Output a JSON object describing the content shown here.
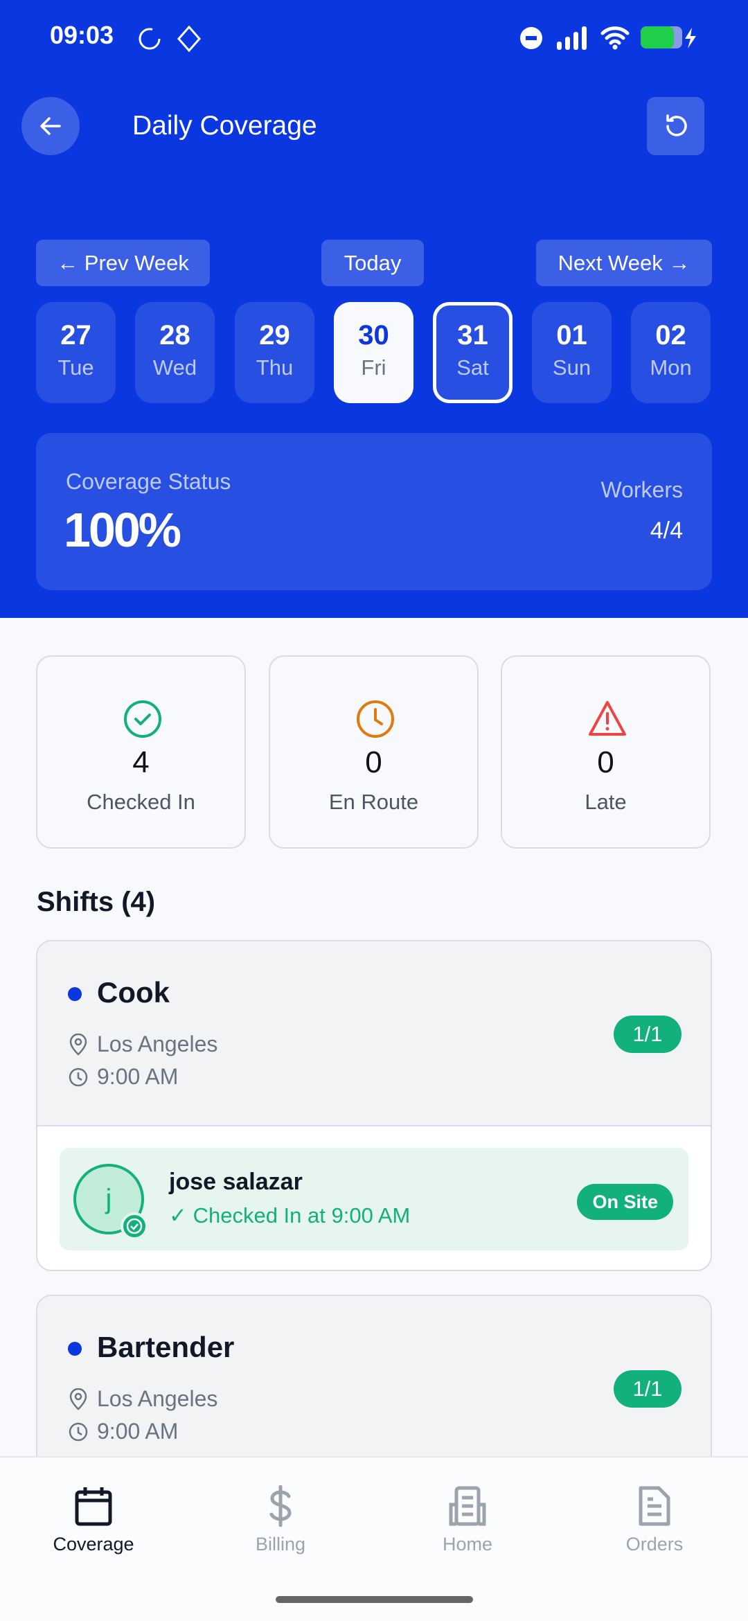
{
  "status_bar": {
    "time": "09:03"
  },
  "header": {
    "title": "Daily Coverage",
    "prev_week": "← Prev Week",
    "today": "Today",
    "next_week": "Next Week →"
  },
  "days": [
    {
      "num": "27",
      "dow": "Tue"
    },
    {
      "num": "28",
      "dow": "Wed"
    },
    {
      "num": "29",
      "dow": "Thu"
    },
    {
      "num": "30",
      "dow": "Fri",
      "selected": true
    },
    {
      "num": "31",
      "dow": "Sat",
      "outlined": true
    },
    {
      "num": "01",
      "dow": "Sun"
    },
    {
      "num": "02",
      "dow": "Mon"
    }
  ],
  "coverage": {
    "label": "Coverage Status",
    "value": "100%",
    "workers_label": "Workers",
    "workers_value": "4/4"
  },
  "stats": [
    {
      "value": "4",
      "label": "Checked In",
      "icon": "check-circle-icon",
      "color": "#12b07a"
    },
    {
      "value": "0",
      "label": "En Route",
      "icon": "clock-icon",
      "color": "#e07a0c"
    },
    {
      "value": "0",
      "label": "Late",
      "icon": "warning-icon",
      "color": "#ef4444"
    }
  ],
  "shifts_title": "Shifts (4)",
  "shifts": [
    {
      "role": "Cook",
      "location": "Los Angeles",
      "time": "9:00 AM",
      "filled": "1/1",
      "workers": [
        {
          "initial": "j",
          "name": "jose salazar",
          "status_text": "✓ Checked In at 9:00 AM",
          "badge": "On Site"
        }
      ]
    },
    {
      "role": "Bartender",
      "location": "Los Angeles",
      "time": "9:00 AM",
      "filled": "1/1"
    }
  ],
  "nav": [
    {
      "label": "Coverage",
      "active": true
    },
    {
      "label": "Billing"
    },
    {
      "label": "Home"
    },
    {
      "label": "Orders"
    }
  ],
  "colors": {
    "brand": "#0a37df",
    "success": "#12b07a",
    "warning": "#e07a0c",
    "danger": "#ef4444"
  }
}
